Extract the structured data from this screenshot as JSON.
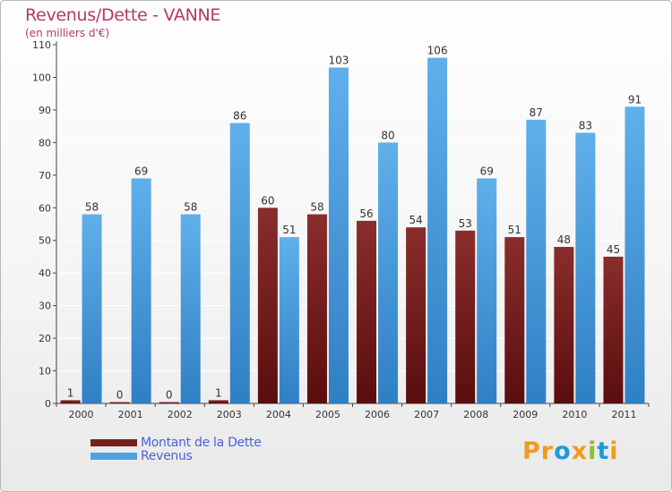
{
  "header": {
    "title": "Revenus/Dette - VANNE",
    "subtitle": "(en milliers d'€)"
  },
  "brand": {
    "text": "Proxiti",
    "letters": [
      "P",
      "r",
      "o",
      "x",
      "i",
      "t",
      "i"
    ],
    "colors": [
      "#f29a1f",
      "#f29a1f",
      "#1e9bd7",
      "#f29a1f",
      "#8ebf2d",
      "#1e9bd7",
      "#f29a1f"
    ]
  },
  "colors": {
    "debt": "#7a1f1f",
    "revenue": "#4fa3e2",
    "axis": "#444444",
    "grid": "#ffffff",
    "title": "#b3386b",
    "legend_text": "#4b62d6"
  },
  "chart_data": {
    "type": "bar",
    "title": "Revenus/Dette - VANNE",
    "subtitle": "(en milliers d'€)",
    "categories": [
      "2000",
      "2001",
      "2002",
      "2003",
      "2004",
      "2005",
      "2006",
      "2007",
      "2008",
      "2009",
      "2010",
      "2011"
    ],
    "series": [
      {
        "name": "Montant de la Dette",
        "values": [
          1,
          0,
          0,
          1,
          60,
          58,
          56,
          54,
          53,
          51,
          48,
          45
        ]
      },
      {
        "name": "Revenus",
        "values": [
          58,
          69,
          58,
          86,
          51,
          103,
          80,
          106,
          69,
          87,
          83,
          91
        ]
      }
    ],
    "ylim": [
      0,
      110
    ],
    "yticks": [
      0,
      10,
      20,
      30,
      40,
      50,
      60,
      70,
      80,
      90,
      100,
      110
    ],
    "grid": true,
    "legend_position": "bottom-left"
  }
}
